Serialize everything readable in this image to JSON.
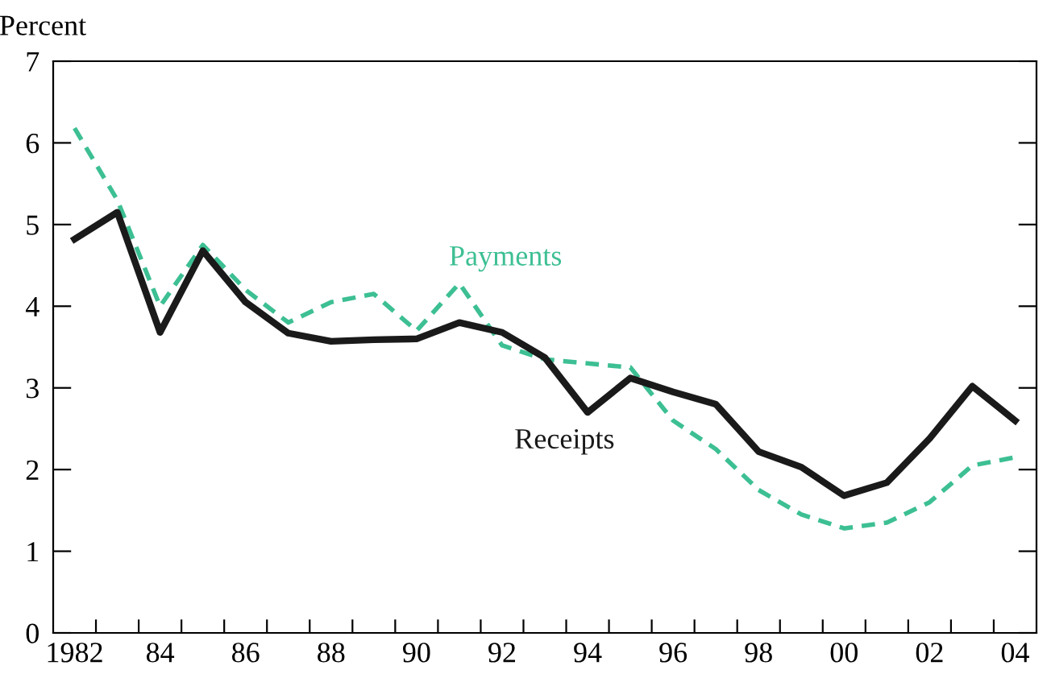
{
  "chart_data": {
    "type": "line",
    "ylabel": "Percent",
    "x": [
      1982,
      1983,
      1984,
      1985,
      1986,
      1987,
      1988,
      1989,
      1990,
      1991,
      1992,
      1993,
      1994,
      1995,
      1996,
      1997,
      1998,
      1999,
      2000,
      2001,
      2002,
      2003,
      2004
    ],
    "series": [
      {
        "name": "Payments",
        "color": "#3dbf94",
        "line_style": "dashed",
        "values": [
          6.18,
          5.3,
          4.0,
          4.75,
          4.2,
          3.8,
          4.05,
          4.15,
          3.7,
          4.28,
          3.52,
          3.35,
          3.3,
          3.25,
          2.6,
          2.25,
          1.75,
          1.45,
          1.28,
          1.35,
          1.6,
          2.05,
          2.15
        ]
      },
      {
        "name": "Receipts",
        "color": "#1a1a1a",
        "line_style": "solid",
        "values": [
          4.82,
          5.15,
          3.68,
          4.68,
          4.05,
          3.67,
          3.57,
          3.59,
          3.6,
          3.8,
          3.68,
          3.37,
          2.7,
          3.12,
          2.95,
          2.8,
          2.22,
          2.03,
          1.68,
          1.84,
          2.38,
          3.02,
          2.6
        ]
      }
    ],
    "xlim": [
      1981.5,
      2004.5
    ],
    "ylim": [
      0,
      7
    ],
    "xticks": [
      {
        "value": 1982,
        "label": "1982"
      },
      {
        "value": 1984,
        "label": "84"
      },
      {
        "value": 1986,
        "label": "86"
      },
      {
        "value": 1988,
        "label": "88"
      },
      {
        "value": 1990,
        "label": "90"
      },
      {
        "value": 1992,
        "label": "92"
      },
      {
        "value": 1994,
        "label": "94"
      },
      {
        "value": 1996,
        "label": "96"
      },
      {
        "value": 1998,
        "label": "98"
      },
      {
        "value": 2000,
        "label": "00"
      },
      {
        "value": 2002,
        "label": "02"
      },
      {
        "value": 2004,
        "label": "04"
      },
      {
        "value": 1982.5,
        "label": null
      },
      {
        "value": 1983.5,
        "label": null
      },
      {
        "value": 1984.5,
        "label": null
      },
      {
        "value": 1985.5,
        "label": null
      },
      {
        "value": 1986.5,
        "label": null
      },
      {
        "value": 1987.5,
        "label": null
      },
      {
        "value": 1988.5,
        "label": null
      },
      {
        "value": 1989.5,
        "label": null
      },
      {
        "value": 1990.5,
        "label": null
      },
      {
        "value": 1991.5,
        "label": null
      },
      {
        "value": 1992.5,
        "label": null
      },
      {
        "value": 1993.5,
        "label": null
      },
      {
        "value": 1994.5,
        "label": null
      },
      {
        "value": 1995.5,
        "label": null
      },
      {
        "value": 1996.5,
        "label": null
      },
      {
        "value": 1997.5,
        "label": null
      },
      {
        "value": 1998.5,
        "label": null
      },
      {
        "value": 1999.5,
        "label": null
      },
      {
        "value": 2000.5,
        "label": null
      },
      {
        "value": 2001.5,
        "label": null
      },
      {
        "value": 2002.5,
        "label": null
      },
      {
        "value": 2003.5,
        "label": null
      }
    ],
    "yticks": [
      0,
      1,
      2,
      3,
      4,
      5,
      6,
      7
    ],
    "grid": false,
    "legend": false
  }
}
